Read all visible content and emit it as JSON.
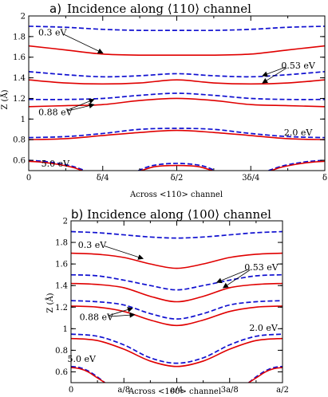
{
  "colors": {
    "solid": "#e00000",
    "dashed": "#1010d0",
    "axis": "#000000"
  },
  "chart_data": [
    {
      "type": "line",
      "panel": "a)",
      "title": "Incidence along ⟨110⟩ channel",
      "xlabel": "Across <110> channel",
      "ylabel": "Z (Å)",
      "xlim": [
        0,
        1
      ],
      "ylim": [
        0.5,
        2.0
      ],
      "x_ticks": [
        0,
        0.25,
        0.5,
        0.75,
        1
      ],
      "x_tick_labels": [
        "0",
        "δ/4",
        "δ/2",
        "3δ/4",
        "δ"
      ],
      "y_ticks": [
        0.6,
        0.8,
        1.0,
        1.2,
        1.4,
        1.6,
        1.8,
        2.0
      ],
      "y_tick_labels": [
        "0.6",
        "0.8",
        "1",
        "1.2",
        "1.4",
        "1.6",
        "1.8",
        "2"
      ],
      "grid": false,
      "series": [
        {
          "energy": "0.3 eV",
          "style": "dashed",
          "x": [
            0,
            0.125,
            0.25,
            0.375,
            0.5,
            0.625,
            0.75,
            0.875,
            1
          ],
          "y": [
            1.9,
            1.89,
            1.87,
            1.86,
            1.86,
            1.86,
            1.87,
            1.89,
            1.9
          ]
        },
        {
          "energy": "0.3 eV",
          "style": "solid",
          "x": [
            0,
            0.125,
            0.25,
            0.375,
            0.5,
            0.625,
            0.75,
            0.875,
            1
          ],
          "y": [
            1.71,
            1.67,
            1.63,
            1.62,
            1.62,
            1.62,
            1.63,
            1.67,
            1.71
          ]
        },
        {
          "energy": "0.53 eV",
          "style": "dashed",
          "x": [
            0,
            0.125,
            0.25,
            0.375,
            0.5,
            0.625,
            0.75,
            0.875,
            1
          ],
          "y": [
            1.46,
            1.43,
            1.41,
            1.42,
            1.44,
            1.42,
            1.41,
            1.43,
            1.46
          ]
        },
        {
          "energy": "0.53 eV",
          "style": "solid",
          "x": [
            0,
            0.125,
            0.25,
            0.375,
            0.5,
            0.625,
            0.75,
            0.875,
            1
          ],
          "y": [
            1.38,
            1.35,
            1.34,
            1.35,
            1.38,
            1.35,
            1.34,
            1.35,
            1.38
          ]
        },
        {
          "energy": "0.88 eV",
          "style": "dashed",
          "x": [
            0,
            0.125,
            0.25,
            0.375,
            0.5,
            0.625,
            0.75,
            0.875,
            1
          ],
          "y": [
            1.19,
            1.19,
            1.2,
            1.23,
            1.25,
            1.23,
            1.2,
            1.19,
            1.19
          ]
        },
        {
          "energy": "0.88 eV",
          "style": "solid",
          "x": [
            0,
            0.125,
            0.25,
            0.375,
            0.5,
            0.625,
            0.75,
            0.875,
            1
          ],
          "y": [
            1.12,
            1.13,
            1.14,
            1.18,
            1.2,
            1.18,
            1.14,
            1.13,
            1.12
          ]
        },
        {
          "energy": "2.0 eV",
          "style": "dashed",
          "x": [
            0,
            0.125,
            0.25,
            0.375,
            0.5,
            0.625,
            0.75,
            0.875,
            1
          ],
          "y": [
            0.82,
            0.83,
            0.86,
            0.9,
            0.91,
            0.9,
            0.86,
            0.83,
            0.82
          ]
        },
        {
          "energy": "2.0 eV",
          "style": "solid",
          "x": [
            0,
            0.125,
            0.25,
            0.375,
            0.5,
            0.625,
            0.75,
            0.875,
            1
          ],
          "y": [
            0.8,
            0.81,
            0.84,
            0.87,
            0.89,
            0.87,
            0.84,
            0.81,
            0.8
          ]
        },
        {
          "energy": "5.0 eV",
          "style": "dashed",
          "x": [
            0,
            0.05,
            0.1,
            0.15,
            0.19
          ],
          "y": [
            0.6,
            0.59,
            0.57,
            0.54,
            0.5
          ]
        },
        {
          "energy": "5.0 eV",
          "style": "solid",
          "x": [
            0,
            0.05,
            0.1,
            0.15,
            0.18
          ],
          "y": [
            0.59,
            0.58,
            0.56,
            0.53,
            0.5
          ]
        },
        {
          "energy": "5.0 eV",
          "style": "dashed",
          "x": [
            0.37,
            0.42,
            0.5,
            0.58,
            0.63
          ],
          "y": [
            0.5,
            0.55,
            0.57,
            0.55,
            0.5
          ]
        },
        {
          "energy": "5.0 eV",
          "style": "solid",
          "x": [
            0.38,
            0.43,
            0.5,
            0.57,
            0.62
          ],
          "y": [
            0.5,
            0.54,
            0.55,
            0.54,
            0.5
          ]
        },
        {
          "energy": "5.0 eV",
          "style": "dashed",
          "x": [
            0.81,
            0.85,
            0.9,
            0.95,
            1
          ],
          "y": [
            0.5,
            0.54,
            0.57,
            0.59,
            0.6
          ]
        },
        {
          "energy": "5.0 eV",
          "style": "solid",
          "x": [
            0.82,
            0.85,
            0.9,
            0.95,
            1
          ],
          "y": [
            0.5,
            0.53,
            0.56,
            0.58,
            0.59
          ]
        }
      ],
      "annotations": [
        {
          "text": "0.3 eV",
          "text_x": 0.08,
          "text_y": 1.84,
          "arrows": [
            [
              0.25,
              1.64
            ]
          ]
        },
        {
          "text": "0.53 eV",
          "text_x": 0.91,
          "text_y": 1.52,
          "arrows": [
            [
              0.79,
              1.42
            ],
            [
              0.79,
              1.35
            ]
          ]
        },
        {
          "text": "0.88 eV",
          "text_x": 0.09,
          "text_y": 1.07,
          "arrows": [
            [
              0.22,
              1.19
            ],
            [
              0.22,
              1.14
            ]
          ]
        },
        {
          "text": "2.0 eV",
          "text_x": 0.91,
          "text_y": 0.87,
          "arrows": []
        },
        {
          "text": "5.0 eV",
          "text_x": 0.09,
          "text_y": 0.57,
          "arrows": []
        }
      ]
    },
    {
      "type": "line",
      "panel": "b)",
      "title": "Incidence along ⟨100⟩ channel",
      "xlabel": "Across <100> channel",
      "ylabel": "Z (Å)",
      "xlim": [
        0,
        0.5
      ],
      "ylim": [
        0.5,
        2.0
      ],
      "x_ticks": [
        0,
        0.125,
        0.25,
        0.375,
        0.5
      ],
      "x_tick_labels": [
        "0",
        "a/8",
        "a/4",
        "3a/8",
        "a/2"
      ],
      "y_ticks": [
        0.6,
        0.8,
        1.0,
        1.2,
        1.4,
        1.6,
        1.8,
        2.0
      ],
      "y_tick_labels": [
        "0.6",
        "0.8",
        "1",
        "1.2",
        "1.4",
        "1.6",
        "1.8",
        "2"
      ],
      "grid": false,
      "series": [
        {
          "energy": "0.3 eV",
          "style": "dashed",
          "x": [
            0,
            0.0625,
            0.125,
            0.1875,
            0.25,
            0.3125,
            0.375,
            0.4375,
            0.5
          ],
          "y": [
            1.9,
            1.89,
            1.87,
            1.85,
            1.84,
            1.85,
            1.87,
            1.89,
            1.9
          ]
        },
        {
          "energy": "0.3 eV",
          "style": "solid",
          "x": [
            0,
            0.0625,
            0.125,
            0.1875,
            0.25,
            0.3125,
            0.375,
            0.4375,
            0.5
          ],
          "y": [
            1.7,
            1.69,
            1.66,
            1.6,
            1.56,
            1.6,
            1.66,
            1.69,
            1.7
          ]
        },
        {
          "energy": "0.53 eV",
          "style": "dashed",
          "x": [
            0,
            0.0625,
            0.125,
            0.1875,
            0.25,
            0.3125,
            0.375,
            0.4375,
            0.5
          ],
          "y": [
            1.5,
            1.49,
            1.45,
            1.4,
            1.36,
            1.4,
            1.45,
            1.49,
            1.5
          ]
        },
        {
          "energy": "0.53 eV",
          "style": "solid",
          "x": [
            0,
            0.0625,
            0.125,
            0.1875,
            0.25,
            0.3125,
            0.375,
            0.4375,
            0.5
          ],
          "y": [
            1.42,
            1.41,
            1.38,
            1.3,
            1.25,
            1.3,
            1.38,
            1.41,
            1.42
          ]
        },
        {
          "energy": "0.88 eV",
          "style": "dashed",
          "x": [
            0,
            0.0625,
            0.125,
            0.1875,
            0.25,
            0.3125,
            0.375,
            0.4375,
            0.5
          ],
          "y": [
            1.26,
            1.25,
            1.22,
            1.14,
            1.09,
            1.14,
            1.22,
            1.25,
            1.26
          ]
        },
        {
          "energy": "0.88 eV",
          "style": "solid",
          "x": [
            0,
            0.0625,
            0.125,
            0.1875,
            0.25,
            0.3125,
            0.375,
            0.4375,
            0.5
          ],
          "y": [
            1.21,
            1.2,
            1.16,
            1.08,
            1.03,
            1.08,
            1.16,
            1.2,
            1.21
          ]
        },
        {
          "energy": "2.0 eV",
          "style": "dashed",
          "x": [
            0,
            0.0625,
            0.125,
            0.1875,
            0.25,
            0.3125,
            0.375,
            0.4375,
            0.5
          ],
          "y": [
            0.95,
            0.93,
            0.85,
            0.73,
            0.68,
            0.73,
            0.85,
            0.93,
            0.95
          ]
        },
        {
          "energy": "2.0 eV",
          "style": "solid",
          "x": [
            0,
            0.0625,
            0.125,
            0.1875,
            0.25,
            0.3125,
            0.375,
            0.4375,
            0.5
          ],
          "y": [
            0.91,
            0.89,
            0.81,
            0.7,
            0.65,
            0.7,
            0.81,
            0.89,
            0.91
          ]
        },
        {
          "energy": "5.0 eV",
          "style": "dashed",
          "x": [
            0,
            0.02,
            0.04,
            0.06,
            0.08
          ],
          "y": [
            0.65,
            0.64,
            0.61,
            0.56,
            0.5
          ]
        },
        {
          "energy": "5.0 eV",
          "style": "solid",
          "x": [
            0,
            0.02,
            0.04,
            0.06,
            0.08
          ],
          "y": [
            0.64,
            0.63,
            0.6,
            0.55,
            0.5
          ]
        },
        {
          "energy": "5.0 eV",
          "style": "dashed",
          "x": [
            0.42,
            0.44,
            0.46,
            0.48,
            0.5
          ],
          "y": [
            0.5,
            0.56,
            0.61,
            0.64,
            0.65
          ]
        },
        {
          "energy": "5.0 eV",
          "style": "solid",
          "x": [
            0.42,
            0.44,
            0.46,
            0.48,
            0.5
          ],
          "y": [
            0.5,
            0.55,
            0.6,
            0.63,
            0.64
          ]
        }
      ],
      "annotations": [
        {
          "text": "0.3 eV",
          "text_x": 0.05,
          "text_y": 1.78,
          "arrows": [
            [
              0.17,
              1.65
            ]
          ]
        },
        {
          "text": "0.53 eV",
          "text_x": 0.45,
          "text_y": 1.57,
          "arrows": [
            [
              0.345,
              1.43
            ],
            [
              0.36,
              1.38
            ]
          ]
        },
        {
          "text": "0.88 eV",
          "text_x": 0.06,
          "text_y": 1.11,
          "arrows": [
            [
              0.145,
              1.19
            ],
            [
              0.15,
              1.13
            ]
          ]
        },
        {
          "text": "2.0 eV",
          "text_x": 0.455,
          "text_y": 1.01,
          "arrows": []
        },
        {
          "text": "5.0 eV",
          "text_x": 0.025,
          "text_y": 0.72,
          "arrows": []
        }
      ]
    }
  ]
}
